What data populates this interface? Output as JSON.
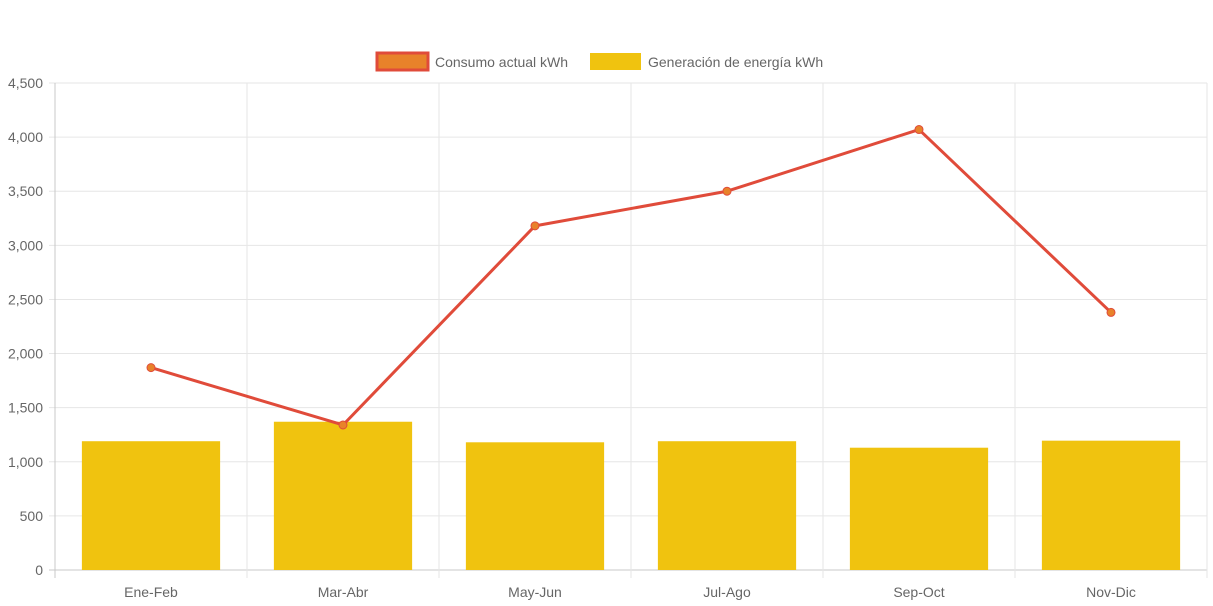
{
  "chart_data": {
    "type": "bar",
    "categories": [
      "Ene-Feb",
      "Mar-Abr",
      "May-Jun",
      "Jul-Ago",
      "Sep-Oct",
      "Nov-Dic"
    ],
    "ylim": [
      0,
      4500
    ],
    "yticks": [
      0,
      500,
      1000,
      1500,
      2000,
      2500,
      3000,
      3500,
      4000,
      4500
    ],
    "ytick_labels": [
      "0",
      "500",
      "1,000",
      "1,500",
      "2,000",
      "2,500",
      "3,000",
      "3,500",
      "4,000",
      "4,500"
    ],
    "grid": true,
    "legend_position": "top-center",
    "series": [
      {
        "name": "Consumo actual kWh",
        "type": "line",
        "color": "#e04b3a",
        "point_color": "#e8822a",
        "values": [
          1870,
          1340,
          3180,
          3500,
          4070,
          2380
        ]
      },
      {
        "name": "Generación de energía kWh",
        "type": "bar",
        "color": "#f0c30f",
        "values": [
          1190,
          1370,
          1180,
          1190,
          1130,
          1195
        ]
      }
    ]
  }
}
